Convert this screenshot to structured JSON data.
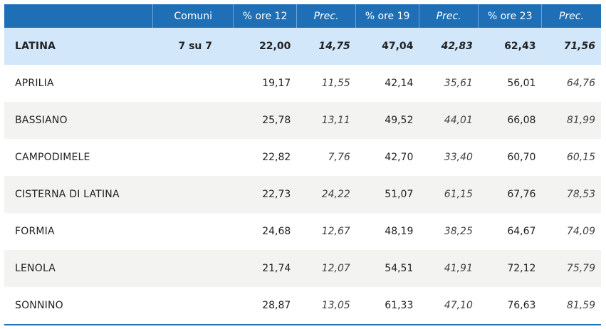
{
  "table": {
    "headers": [
      "",
      "Comuni",
      "% ore 12",
      "Prec.",
      "% ore 19",
      "Prec.",
      "% ore 23",
      "Prec."
    ],
    "total": {
      "name": "LATINA",
      "comuni": "7 su 7",
      "ore12": "22,00",
      "prec12": "14,75",
      "ore19": "47,04",
      "prec19": "42,83",
      "ore23": "62,43",
      "prec23": "71,56"
    },
    "rows": [
      {
        "name": "APRILIA",
        "comuni": "",
        "ore12": "19,17",
        "prec12": "11,55",
        "ore19": "42,14",
        "prec19": "35,61",
        "ore23": "56,01",
        "prec23": "64,76"
      },
      {
        "name": "BASSIANO",
        "comuni": "",
        "ore12": "25,78",
        "prec12": "13,11",
        "ore19": "49,52",
        "prec19": "44,01",
        "ore23": "66,08",
        "prec23": "81,99"
      },
      {
        "name": "CAMPODIMELE",
        "comuni": "",
        "ore12": "22,82",
        "prec12": "7,76",
        "ore19": "42,70",
        "prec19": "33,40",
        "ore23": "60,70",
        "prec23": "60,15"
      },
      {
        "name": "CISTERNA DI LATINA",
        "comuni": "",
        "ore12": "22,73",
        "prec12": "24,22",
        "ore19": "51,07",
        "prec19": "61,15",
        "ore23": "67,76",
        "prec23": "78,53"
      },
      {
        "name": "FORMIA",
        "comuni": "",
        "ore12": "24,68",
        "prec12": "12,67",
        "ore19": "48,19",
        "prec19": "38,25",
        "ore23": "64,67",
        "prec23": "74,09"
      },
      {
        "name": "LENOLA",
        "comuni": "",
        "ore12": "21,74",
        "prec12": "12,07",
        "ore19": "54,51",
        "prec19": "41,91",
        "ore23": "72,12",
        "prec23": "75,79"
      },
      {
        "name": "SONNINO",
        "comuni": "",
        "ore12": "28,87",
        "prec12": "13,05",
        "ore19": "61,33",
        "prec19": "47,10",
        "ore23": "76,63",
        "prec23": "81,59"
      }
    ]
  },
  "colors": {
    "header_bg": "#1e6fb6",
    "total_bg": "#d3e7fb",
    "alt_row_bg": "#f3f3f1"
  }
}
